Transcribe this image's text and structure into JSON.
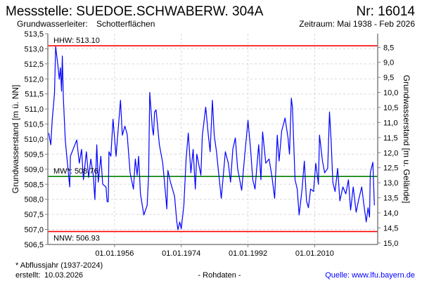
{
  "header": {
    "title": "Messstelle: SUEDOE.SCHWABERW. 304A",
    "number": "Nr: 16014",
    "aquifer_label": "Grundwasserleiter:",
    "aquifer_value": "Schotterflächen",
    "period": "Zeitraum: Mai 1938 - Feb 2026"
  },
  "footer": {
    "note": "* Abflussjahr (1937-2024)",
    "created_label": "erstellt:",
    "created_value": "10.03.2026",
    "raw": "- Rohdaten -",
    "source": "Quelle: www.lfu.bayern.de"
  },
  "colors": {
    "series": "#0000ff",
    "hhw": "#ff0000",
    "nnw": "#ff0000",
    "mw": "#008000",
    "source": "#0000ff"
  },
  "chart_data": {
    "type": "line",
    "title": "Messstelle: SUEDOE.SCHWABERW. 304A",
    "ylabel": "Grundwasserstand [m ü. NN]",
    "ylabel_right": "Grundwasserstand [m u. Gelände]",
    "ylim": [
      506.5,
      513.5
    ],
    "xlim": [
      1938.0,
      2027.0
    ],
    "ground_level": 521.55,
    "y_ticks": [
      "506,5",
      "507,0",
      "507,5",
      "508,0",
      "508,5",
      "509,0",
      "509,5",
      "510,0",
      "510,5",
      "511,0",
      "511,5",
      "512,0",
      "512,5",
      "513,0",
      "513,5"
    ],
    "y_tick_values": [
      506.5,
      507.0,
      507.5,
      508.0,
      508.5,
      509.0,
      509.5,
      510.0,
      510.5,
      511.0,
      511.5,
      512.0,
      512.5,
      513.0,
      513.5
    ],
    "y_right_ticks": [
      "8,5",
      "9,0",
      "9,5",
      "10,0",
      "10,5",
      "11,0",
      "11,5",
      "12,0",
      "12,5",
      "13,0",
      "13,5",
      "14,0",
      "14,5",
      "15,0"
    ],
    "y_right_values": [
      8.5,
      9.0,
      9.5,
      10.0,
      10.5,
      11.0,
      11.5,
      12.0,
      12.5,
      13.0,
      13.5,
      14.0,
      14.5,
      15.0
    ],
    "x_ticks": [
      "01.01.1956",
      "01.01.1974",
      "01.01.1992",
      "01.01.2010"
    ],
    "x_tick_values": [
      1956,
      1974,
      1992,
      2010
    ],
    "grid": true,
    "reference_lines": [
      {
        "name": "hhw",
        "label": "HHW: 513.10",
        "value": 513.1
      },
      {
        "name": "mw",
        "label": "MW*: 508.76",
        "value": 508.76
      },
      {
        "name": "nnw",
        "label": "NNW: 506.93",
        "value": 506.93
      }
    ],
    "series": [
      {
        "name": "Grundwasserstand",
        "x": [
          1938.25,
          1938.8,
          1939.2,
          1939.8,
          1940.1,
          1940.65,
          1941.1,
          1941.4,
          1941.7,
          1941.9,
          1942.2,
          1942.7,
          1943.3,
          1943.9,
          1944.1,
          1945.8,
          1946.5,
          1947.1,
          1947.6,
          1948.4,
          1949.0,
          1949.6,
          1950.25,
          1950.7,
          1951.2,
          1951.6,
          1952.3,
          1952.8,
          1953.7,
          1954.0,
          1954.3,
          1954.5,
          1955.0,
          1955.6,
          1956.4,
          1957.6,
          1958.1,
          1958.8,
          1959.4,
          1960.2,
          1961.1,
          1961.6,
          1962.1,
          1962.5,
          1963.0,
          1963.9,
          1964.8,
          1965.2,
          1965.5,
          1966.2,
          1966.5,
          1966.8,
          1967.2,
          1968.1,
          1969.0,
          1969.6,
          1970.1,
          1970.4,
          1971.1,
          1972.2,
          1972.8,
          1973.1,
          1973.6,
          1974.0,
          1974.7,
          1975.3,
          1975.9,
          1976.6,
          1977.2,
          1977.8,
          1978.2,
          1979.3,
          1979.7,
          1980.6,
          1981.3,
          1981.8,
          1982.4,
          1982.9,
          1983.5,
          1984.15,
          1984.8,
          1985.4,
          1985.9,
          1986.7,
          1987.3,
          1987.9,
          1988.6,
          1989.2,
          1990.3,
          1991.1,
          1992.0,
          1992.7,
          1993.3,
          1993.9,
          1994.9,
          1995.5,
          1995.95,
          1996.8,
          1997.7,
          1998.5,
          1999.2,
          1999.9,
          2000.4,
          2001.1,
          2002.0,
          2002.8,
          2003.2,
          2003.7,
          2004.0,
          2004.7,
          2005.3,
          2005.8,
          2006.6,
          2007.2,
          2007.8,
          2008.3,
          2008.9,
          2009.7,
          2010.3,
          2011.0,
          2011.3,
          2012.1,
          2012.7,
          2013.5,
          2014.0,
          2014.45,
          2014.9,
          2015.5,
          2016.2,
          2016.8,
          2017.6,
          2018.4,
          2019.1,
          2019.7,
          2020.4,
          2021.2,
          2021.8,
          2022.7,
          2023.3,
          2023.9,
          2024.4,
          2024.8,
          2025.0,
          2025.7,
          2026.1
        ],
        "values": [
          510.2,
          509.81,
          510.66,
          511.52,
          513.07,
          512.52,
          511.99,
          512.37,
          511.59,
          512.76,
          511.36,
          509.97,
          509.2,
          508.41,
          509.43,
          509.97,
          509.2,
          509.66,
          508.65,
          509.58,
          508.73,
          509.34,
          508.8,
          507.99,
          509.81,
          508.57,
          509.43,
          508.5,
          508.41,
          507.92,
          507.92,
          509.58,
          509.43,
          510.66,
          509.43,
          511.29,
          510.13,
          510.43,
          510.16,
          508.88,
          508.34,
          509.34,
          508.8,
          509.43,
          508.18,
          507.48,
          507.8,
          508.8,
          511.55,
          510.36,
          510.13,
          510.9,
          510.97,
          509.81,
          509.2,
          508.41,
          507.68,
          508.96,
          508.57,
          508.1,
          507.25,
          506.99,
          507.25,
          507.02,
          507.8,
          509.34,
          510.2,
          508.88,
          509.66,
          508.34,
          509.5,
          508.8,
          510.13,
          511.06,
          510.13,
          509.58,
          511.29,
          510.13,
          509.58,
          508.8,
          508.03,
          508.88,
          509.58,
          509.2,
          508.57,
          509.66,
          510.04,
          509.03,
          508.3,
          509.43,
          510.62,
          509.66,
          508.65,
          508.34,
          509.81,
          508.65,
          510.24,
          509.2,
          509.34,
          508.73,
          508.03,
          510.13,
          509.27,
          510.27,
          510.7,
          510.04,
          509.5,
          511.36,
          511.06,
          508.65,
          508.34,
          507.48,
          508.34,
          509.27,
          507.95,
          507.72,
          508.34,
          508.26,
          509.2,
          508.5,
          510.13,
          509.27,
          508.88,
          509.03,
          510.9,
          509.9,
          508.57,
          508.26,
          509.03,
          507.95,
          508.41,
          508.18,
          508.65,
          507.64,
          508.41,
          507.57,
          507.95,
          508.41,
          507.8,
          507.25,
          507.72,
          507.41,
          508.88,
          509.23,
          507.8
        ]
      }
    ]
  }
}
